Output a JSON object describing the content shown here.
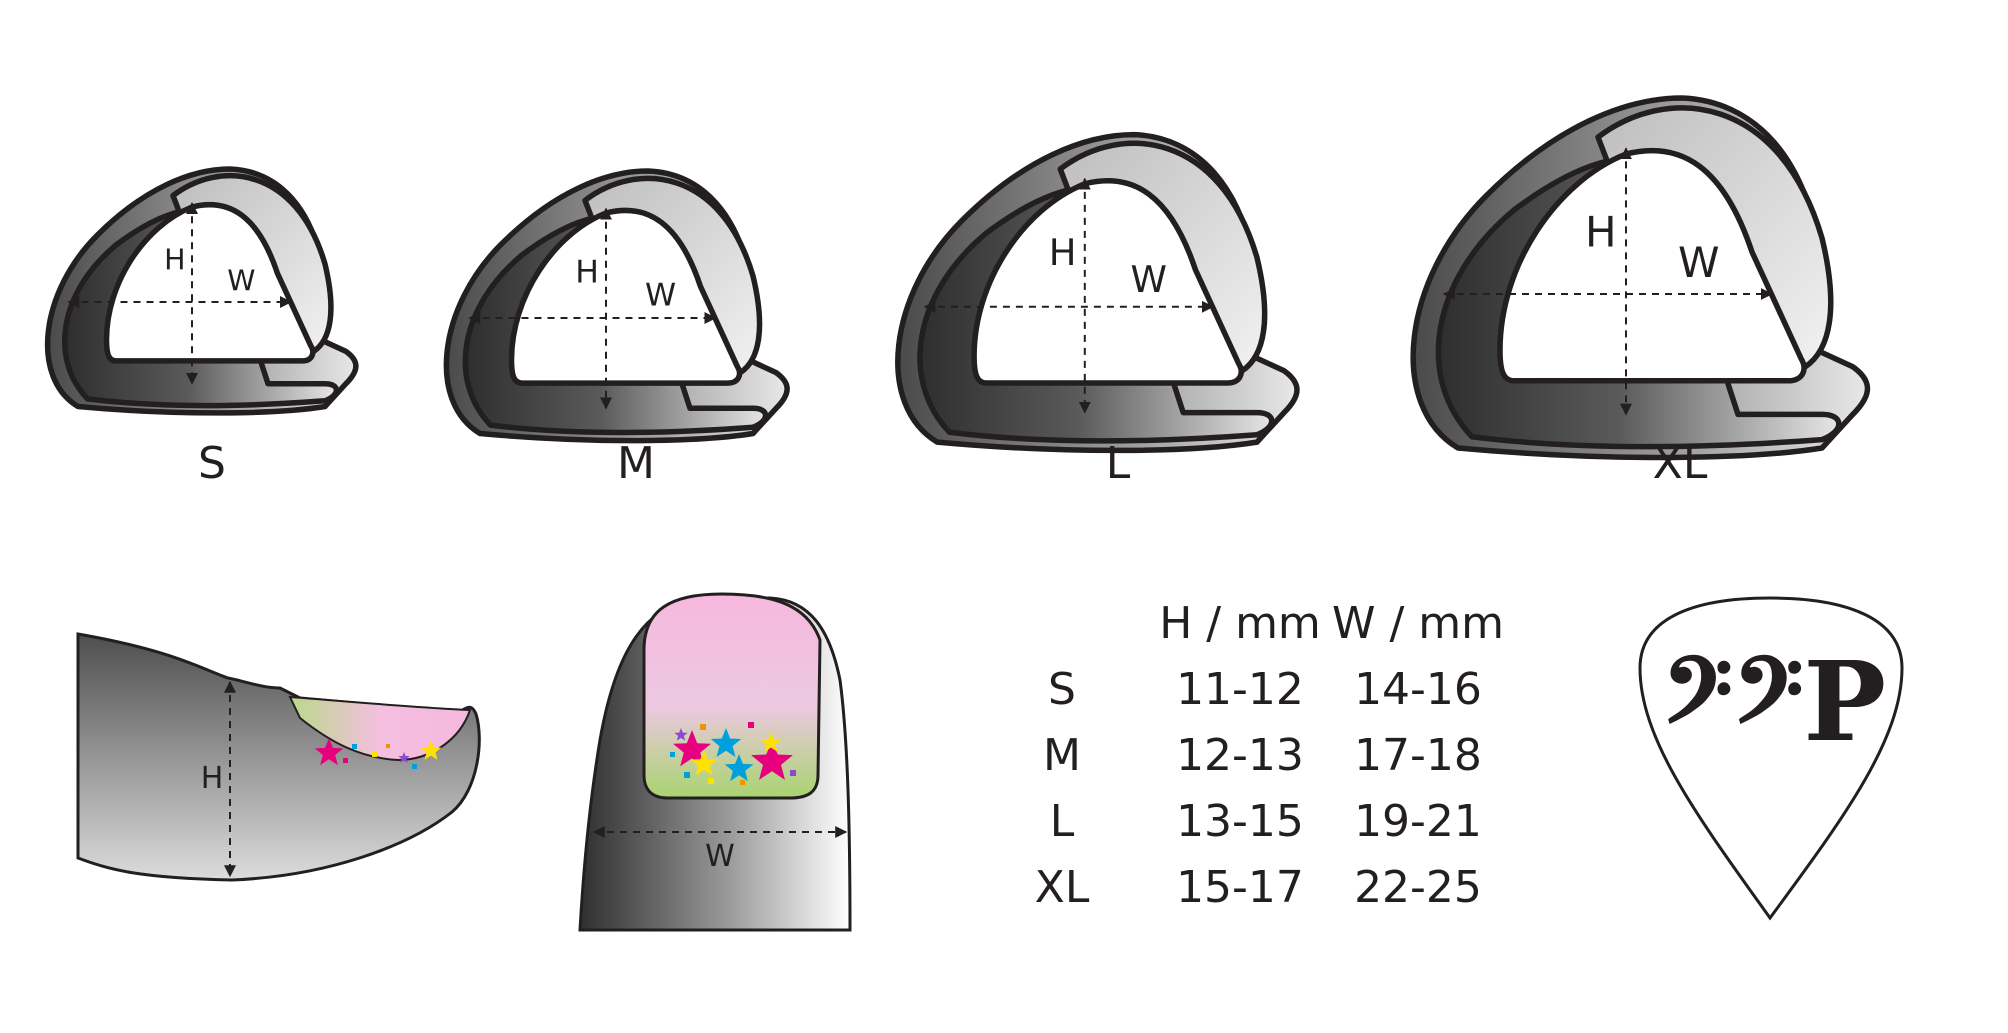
{
  "picks": [
    {
      "size": "S",
      "h_label": "H",
      "w_label": "W"
    },
    {
      "size": "M",
      "h_label": "H",
      "w_label": "W"
    },
    {
      "size": "L",
      "h_label": "H",
      "w_label": "W"
    },
    {
      "size": "XL",
      "h_label": "H",
      "w_label": "W"
    }
  ],
  "finger_side": {
    "h_label": "H"
  },
  "finger_front": {
    "w_label": "W"
  },
  "table": {
    "headers": [
      "H / mm",
      "W / mm"
    ],
    "rows": [
      {
        "size": "S",
        "h": "11-12",
        "w": "14-16"
      },
      {
        "size": "M",
        "h": "12-13",
        "w": "17-18"
      },
      {
        "size": "L",
        "h": "13-15",
        "w": "19-21"
      },
      {
        "size": "XL",
        "h": "15-17",
        "w": "22-25"
      }
    ]
  },
  "logo": {
    "text": "𝄢𝄢P"
  },
  "colors": {
    "outline": "#231f20",
    "nail_pink": "#f6b8de",
    "nail_green": "#b9d98a",
    "star_magenta": "#e6007e",
    "star_cyan": "#00a0dc",
    "star_yellow": "#ffe100"
  }
}
